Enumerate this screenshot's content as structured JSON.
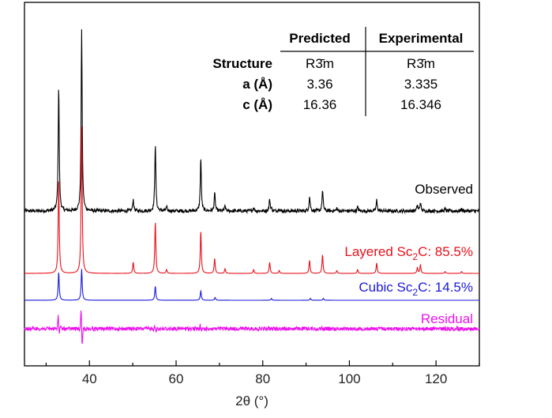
{
  "chart_data": {
    "type": "line",
    "xlabel": "2θ (°)",
    "ylabel": "",
    "xlim": [
      25,
      130
    ],
    "xticks": [
      40,
      60,
      80,
      100,
      120
    ],
    "grid": false,
    "peaks_layered": [
      {
        "x": 32.9,
        "h": 1.0
      },
      {
        "x": 38.2,
        "h": 1.55
      },
      {
        "x": 50.1,
        "h": 0.12
      },
      {
        "x": 55.2,
        "h": 0.55
      },
      {
        "x": 57.8,
        "h": 0.04
      },
      {
        "x": 65.7,
        "h": 0.45
      },
      {
        "x": 68.9,
        "h": 0.16
      },
      {
        "x": 71.3,
        "h": 0.05
      },
      {
        "x": 77.9,
        "h": 0.04
      },
      {
        "x": 81.6,
        "h": 0.12
      },
      {
        "x": 83.8,
        "h": 0.03
      },
      {
        "x": 90.8,
        "h": 0.14
      },
      {
        "x": 93.8,
        "h": 0.2
      },
      {
        "x": 97.1,
        "h": 0.03
      },
      {
        "x": 101.9,
        "h": 0.04
      },
      {
        "x": 106.3,
        "h": 0.11
      },
      {
        "x": 115.7,
        "h": 0.06
      },
      {
        "x": 116.4,
        "h": 0.09
      },
      {
        "x": 122.1,
        "h": 0.02
      },
      {
        "x": 125.9,
        "h": 0.02
      }
    ],
    "peaks_cubic": [
      {
        "x": 32.9,
        "h": 0.3
      },
      {
        "x": 38.2,
        "h": 0.33
      },
      {
        "x": 55.2,
        "h": 0.15
      },
      {
        "x": 65.7,
        "h": 0.1
      },
      {
        "x": 69.0,
        "h": 0.03
      },
      {
        "x": 82.0,
        "h": 0.02
      },
      {
        "x": 91.0,
        "h": 0.02
      },
      {
        "x": 94.0,
        "h": 0.02
      }
    ],
    "series": [
      {
        "name": "Observed",
        "color": "#000000",
        "label": "Observed"
      },
      {
        "name": "Layered Sc2C",
        "color": "#e8101a",
        "label_prefix": "Layered Sc",
        "label_sub": "2",
        "label_suffix": "C: 85.5%"
      },
      {
        "name": "Cubic Sc2C",
        "color": "#1a1ad8",
        "label_prefix": "Cubic Sc",
        "label_sub": "2",
        "label_suffix": "C: 14.5%"
      },
      {
        "name": "Residual",
        "color": "#ee10ee",
        "label": "Residual"
      }
    ],
    "table": {
      "headers": [
        "",
        "Predicted",
        "Experimental"
      ],
      "rows": [
        [
          "Structure",
          "R3̄m",
          "R3̄m"
        ],
        [
          "a (Å)",
          "3.36",
          "3.335"
        ],
        [
          "c (Å)",
          "16.36",
          "16.346"
        ]
      ]
    }
  }
}
